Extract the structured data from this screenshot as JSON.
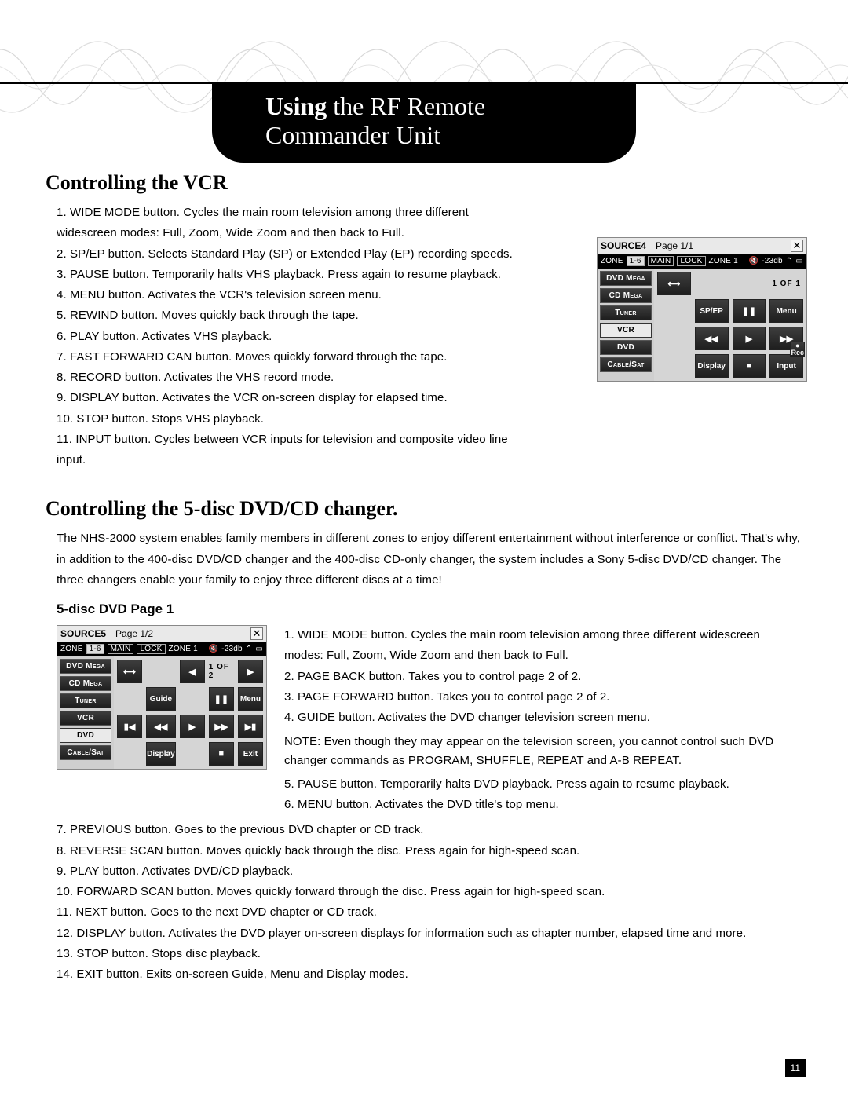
{
  "colors": {
    "accent_black": "#000000",
    "page_bg": "#ffffff",
    "shot_bg": "#d5d5d5",
    "shot_dark": "#2a2a2a"
  },
  "title_banner": {
    "bold": "Using",
    "rest": " the RF Remote Commander Unit"
  },
  "page_number": "11",
  "vcr": {
    "heading": "Controlling the VCR",
    "items": [
      "WIDE MODE button.  Cycles the main room television among three different widescreen modes: Full, Zoom, Wide Zoom and then back to Full.",
      "SP/EP button.  Selects Standard Play (SP) or Extended Play (EP) recording speeds.",
      "PAUSE button.  Temporarily halts VHS playback.  Press again to resume playback.",
      "MENU button.  Activates the VCR's television screen menu.",
      "REWIND button.  Moves quickly back through the tape.",
      "PLAY button.  Activates VHS playback.",
      "FAST FORWARD CAN button.  Moves quickly forward through the tape.",
      "RECORD button.  Activates the VHS record mode.",
      "DISPLAY button.  Activates the VCR on-screen display for elapsed time.",
      "STOP button.  Stops VHS playback.",
      "INPUT button.  Cycles between VCR inputs for television and composite video line input."
    ]
  },
  "dvd": {
    "heading": "Controlling the 5-disc DVD/CD changer.",
    "intro": "The NHS-2000 system enables family members in different zones to enjoy different entertainment without interference or conflict.  That's why, in addition to the 400-disc DVD/CD changer and the 400-disc CD-only changer, the system includes a Sony 5-disc DVD/CD changer.  The three changers enable your family to enjoy three different discs at a time!",
    "sub_heading": "5-disc DVD Page 1",
    "right_items_1to4": [
      "WIDE MODE button.  Cycles the main room television among three different widescreen modes: Full, Zoom, Wide Zoom and then back to Full.",
      "PAGE BACK button.  Takes you to control page 2 of 2.",
      "PAGE FORWARD button.  Takes you to control page 2 of 2.",
      "GUIDE button.  Activates the DVD changer television screen menu."
    ],
    "note": "NOTE: Even though they may appear on the television screen, you cannot control such DVD changer commands as PROGRAM, SHUFFLE, REPEAT and A-B REPEAT.",
    "right_items_5to6": [
      "PAUSE button.  Temporarily halts DVD playback.  Press again to resume playback.",
      "MENU button.  Activates the DVD title's top menu."
    ],
    "bottom_items_7to14": [
      "PREVIOUS button.  Goes to the previous DVD chapter or CD track.",
      "REVERSE SCAN button.  Moves quickly back through the disc.  Press again for high-speed scan.",
      "PLAY button.  Activates DVD/CD playback.",
      "FORWARD SCAN button.  Moves quickly forward through the disc.  Press again for high-speed scan.",
      "NEXT button.  Goes to the next DVD chapter or CD track.",
      "DISPLAY button.  Activates the DVD player on-screen displays for information such as chapter number, elapsed time and more.",
      "STOP button.  Stops disc playback.",
      "EXIT button.  Exits on-screen Guide, Menu and Display modes."
    ]
  },
  "screenshots": {
    "sources": [
      "DVD Mega",
      "CD Mega",
      "Tuner",
      "VCR",
      "DVD",
      "Cable/Sat"
    ],
    "vcr_panel": {
      "title_source": "SOURCE4",
      "title_page": "Page 1/1",
      "zone_label": "ZONE",
      "zone_range": "1-6",
      "zone_main": "MAIN",
      "zone_lock": "LOCK",
      "zone_sel": "ZONE 1",
      "vol": "-23db",
      "selected_source": "VCR",
      "pager": "1 OF 1",
      "btns": {
        "wide": "⟷",
        "spep": "SP/EP",
        "pause": "❚❚",
        "menu": "Menu",
        "rew": "◀◀",
        "play": "▶",
        "ff": "▶▶",
        "rec": "●\nRec",
        "display": "Display",
        "stop": "■",
        "input": "Input"
      }
    },
    "dvd_panel": {
      "title_source": "SOURCE5",
      "title_page": "Page 1/2",
      "zone_label": "ZONE",
      "zone_range": "1-6",
      "zone_main": "MAIN",
      "zone_lock": "LOCK",
      "zone_sel": "ZONE 1",
      "vol": "-23db",
      "selected_source": "DVD",
      "pager": "1 OF 2",
      "btns": {
        "wide": "⟷",
        "pageback": "◀",
        "pagefwd": "▶",
        "guide": "Guide",
        "pause": "❚❚",
        "menu": "Menu",
        "prev": "▮◀",
        "rscan": "◀◀",
        "play": "▶",
        "fscan": "▶▶",
        "next": "▶▮",
        "display": "Display",
        "stop": "■",
        "exit": "Exit"
      }
    }
  }
}
